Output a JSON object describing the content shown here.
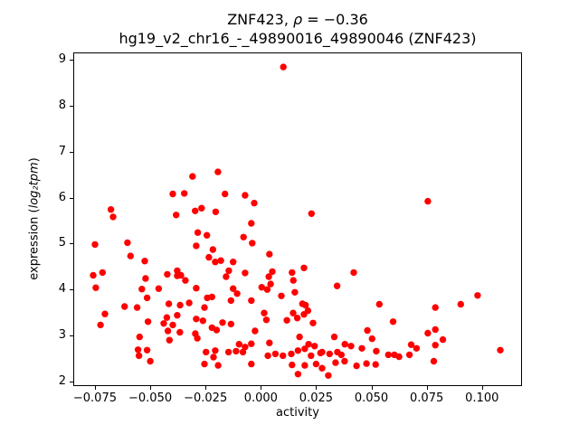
{
  "figure": {
    "title_line1": {
      "part1": "ZNF423, ",
      "rho": "ρ",
      "part2": " = −0.36"
    },
    "title_line2": "hg19_v2_chr16_-_49890016_49890046 (ZNF423)",
    "ylabel_parts": {
      "prefix": "expression (",
      "math": "log₂tpm",
      "suffix": ")"
    },
    "xlabel": "activity"
  },
  "chart_data": {
    "type": "scatter",
    "title": "ZNF423, ρ = −0.36",
    "subtitle": "hg19_v2_chr16_-_49890016_49890046 (ZNF423)",
    "xlabel": "activity",
    "ylabel": "expression (log2 tpm)",
    "grid": false,
    "legend": null,
    "marker_color": "#ff0000",
    "marker_radius_px": 3.7,
    "xlim": [
      -0.0848,
      0.1181
    ],
    "ylim": [
      1.9,
      9.157
    ],
    "xticks": {
      "values": [
        -0.075,
        -0.05,
        -0.025,
        0.0,
        0.025,
        0.05,
        0.075,
        0.1
      ],
      "labels": [
        "−0.075",
        "−0.050",
        "−0.025",
        "0.000",
        "0.025",
        "0.050",
        "0.075",
        "0.100"
      ]
    },
    "yticks": {
      "values": [
        2,
        3,
        4,
        5,
        6,
        7,
        8,
        9
      ],
      "labels": [
        "2",
        "3",
        "4",
        "5",
        "6",
        "7",
        "8",
        "9"
      ]
    },
    "points": [
      [
        0.0102,
        8.84
      ],
      [
        -0.0309,
        6.46
      ],
      [
        -0.0194,
        6.56
      ],
      [
        -0.0398,
        6.08
      ],
      [
        -0.0346,
        6.09
      ],
      [
        -0.0678,
        5.74
      ],
      [
        -0.0668,
        5.58
      ],
      [
        -0.0383,
        5.62
      ],
      [
        -0.0297,
        5.71
      ],
      [
        -0.0268,
        5.77
      ],
      [
        -0.0204,
        5.69
      ],
      [
        -0.0285,
        5.24
      ],
      [
        -0.0244,
        5.18
      ],
      [
        -0.075,
        4.98
      ],
      [
        -0.0603,
        5.02
      ],
      [
        -0.0292,
        4.95
      ],
      [
        -0.0217,
        4.87
      ],
      [
        -0.0589,
        4.73
      ],
      [
        -0.0525,
        4.62
      ],
      [
        -0.0235,
        4.7
      ],
      [
        -0.0206,
        4.6
      ],
      [
        -0.0716,
        4.37
      ],
      [
        -0.0758,
        4.31
      ],
      [
        -0.0423,
        4.33
      ],
      [
        -0.0378,
        4.41
      ],
      [
        -0.0361,
        4.31
      ],
      [
        -0.0162,
        6.08
      ],
      [
        -0.0071,
        6.05
      ],
      [
        -0.003,
        5.88
      ],
      [
        0.0229,
        5.65
      ],
      [
        -0.0043,
        5.44
      ],
      [
        -0.0078,
        5.14
      ],
      [
        -0.0039,
        5.01
      ],
      [
        0.0039,
        4.77
      ],
      [
        -0.0125,
        4.6
      ],
      [
        -0.0181,
        4.63
      ],
      [
        -0.0145,
        4.41
      ],
      [
        -0.0071,
        4.36
      ],
      [
        0.0052,
        4.39
      ],
      [
        0.0141,
        4.37
      ],
      [
        0.0195,
        4.47
      ],
      [
        0.042,
        4.37
      ],
      [
        0.0755,
        5.92
      ],
      [
        -0.0746,
        4.04
      ],
      [
        -0.0521,
        4.24
      ],
      [
        -0.0538,
        4.01
      ],
      [
        -0.0514,
        3.82
      ],
      [
        -0.0462,
        4.02
      ],
      [
        -0.0378,
        4.3
      ],
      [
        -0.0341,
        4.2
      ],
      [
        -0.0616,
        3.63
      ],
      [
        -0.0559,
        3.61
      ],
      [
        -0.0705,
        3.47
      ],
      [
        -0.0725,
        3.23
      ],
      [
        -0.051,
        3.3
      ],
      [
        -0.0548,
        2.97
      ],
      [
        -0.0555,
        2.69
      ],
      [
        -0.0551,
        2.56
      ],
      [
        -0.0514,
        2.68
      ],
      [
        -0.0416,
        3.69
      ],
      [
        -0.0365,
        3.66
      ],
      [
        -0.0324,
        3.71
      ],
      [
        -0.0292,
        4.03
      ],
      [
        -0.0255,
        3.61
      ],
      [
        -0.0242,
        3.82
      ],
      [
        -0.0221,
        3.84
      ],
      [
        -0.0378,
        3.44
      ],
      [
        -0.0425,
        3.39
      ],
      [
        -0.0439,
        3.26
      ],
      [
        -0.0398,
        3.23
      ],
      [
        -0.0292,
        3.36
      ],
      [
        -0.0262,
        3.32
      ],
      [
        -0.0221,
        3.17
      ],
      [
        -0.02,
        3.12
      ],
      [
        -0.0296,
        3.04
      ],
      [
        -0.0287,
        2.94
      ],
      [
        -0.042,
        3.1
      ],
      [
        -0.0366,
        3.07
      ],
      [
        -0.0413,
        2.9
      ],
      [
        -0.0248,
        2.64
      ],
      [
        -0.0206,
        2.67
      ],
      [
        -0.0255,
        2.38
      ],
      [
        -0.0214,
        2.53
      ],
      [
        -0.0193,
        2.35
      ],
      [
        -0.05,
        2.44
      ],
      [
        -0.0157,
        4.28
      ],
      [
        0.0036,
        4.28
      ],
      [
        -0.0125,
        4.02
      ],
      [
        -0.0107,
        3.91
      ],
      [
        -0.0135,
        3.76
      ],
      [
        -0.0043,
        3.76
      ],
      [
        0.0004,
        4.05
      ],
      [
        0.0029,
        4.0
      ],
      [
        0.0044,
        4.12
      ],
      [
        0.0015,
        3.49
      ],
      [
        0.0025,
        3.34
      ],
      [
        -0.0135,
        3.25
      ],
      [
        -0.0173,
        3.28
      ],
      [
        -0.0026,
        3.1
      ],
      [
        -0.0098,
        2.81
      ],
      [
        -0.0071,
        2.75
      ],
      [
        -0.0043,
        2.82
      ],
      [
        -0.0081,
        2.64
      ],
      [
        -0.0112,
        2.66
      ],
      [
        -0.0146,
        2.64
      ],
      [
        0.0039,
        2.84
      ],
      [
        0.0032,
        2.56
      ],
      [
        0.0066,
        2.6
      ],
      [
        0.01,
        2.56
      ],
      [
        0.0138,
        2.6
      ],
      [
        0.0168,
        2.67
      ],
      [
        -0.0043,
        2.38
      ],
      [
        0.0141,
        2.36
      ],
      [
        0.0168,
        2.16
      ],
      [
        0.0118,
        3.33
      ],
      [
        0.0165,
        3.38
      ],
      [
        0.0154,
        3.94
      ],
      [
        0.0147,
        4.2
      ],
      [
        0.0093,
        3.86
      ],
      [
        0.0188,
        3.69
      ],
      [
        0.0146,
        3.49
      ],
      [
        0.0195,
        3.46
      ],
      [
        0.0345,
        4.08
      ],
      [
        0.0202,
        3.66
      ],
      [
        0.0213,
        3.54
      ],
      [
        0.0236,
        3.27
      ],
      [
        0.0175,
        2.97
      ],
      [
        0.0332,
        2.97
      ],
      [
        0.038,
        2.81
      ],
      [
        0.0346,
        2.64
      ],
      [
        0.0311,
        2.6
      ],
      [
        0.0277,
        2.64
      ],
      [
        0.0243,
        2.77
      ],
      [
        0.027,
        2.62
      ],
      [
        0.0216,
        2.81
      ],
      [
        0.0199,
        2.71
      ],
      [
        0.0227,
        2.56
      ],
      [
        0.0199,
        2.35
      ],
      [
        0.025,
        2.38
      ],
      [
        0.0338,
        2.41
      ],
      [
        0.0379,
        2.44
      ],
      [
        0.0408,
        2.77
      ],
      [
        0.0457,
        2.72
      ],
      [
        0.0482,
        3.11
      ],
      [
        0.0478,
        2.39
      ],
      [
        0.0519,
        2.37
      ],
      [
        0.0433,
        2.34
      ],
      [
        0.0277,
        2.29
      ],
      [
        0.0305,
        2.13
      ],
      [
        0.0364,
        2.58
      ],
      [
        0.0536,
        3.68
      ],
      [
        0.0789,
        3.61
      ],
      [
        0.0904,
        3.68
      ],
      [
        0.098,
        3.87
      ],
      [
        0.0598,
        3.3
      ],
      [
        0.0755,
        3.05
      ],
      [
        0.0789,
        3.13
      ],
      [
        0.0503,
        2.93
      ],
      [
        0.0789,
        2.79
      ],
      [
        0.0823,
        2.91
      ],
      [
        0.068,
        2.8
      ],
      [
        0.0704,
        2.72
      ],
      [
        0.0522,
        2.66
      ],
      [
        0.0577,
        2.58
      ],
      [
        0.0604,
        2.58
      ],
      [
        0.0625,
        2.54
      ],
      [
        0.0672,
        2.58
      ],
      [
        0.1083,
        2.68
      ],
      [
        0.0782,
        2.44
      ]
    ]
  }
}
